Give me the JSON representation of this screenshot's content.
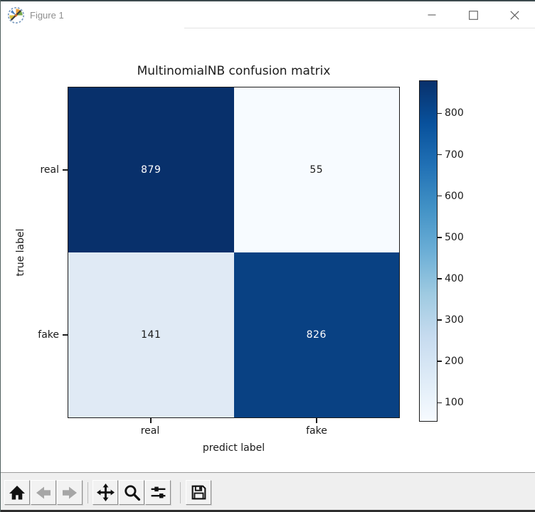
{
  "window": {
    "title": "Figure 1",
    "controls": [
      {
        "name": "minimize"
      },
      {
        "name": "maximize"
      },
      {
        "name": "close"
      }
    ]
  },
  "chart_data": {
    "type": "heatmap",
    "title": "MultinomialNB confusion matrix",
    "xlabel": "predict label",
    "ylabel": "true label",
    "x_categories": [
      "real",
      "fake"
    ],
    "y_categories": [
      "real",
      "fake"
    ],
    "matrix": [
      [
        879,
        55
      ],
      [
        141,
        826
      ]
    ],
    "cell_colors": [
      [
        "#08306b",
        "#f7fbff"
      ],
      [
        "#e0eaf5",
        "#094183"
      ]
    ],
    "cell_text_colors": [
      [
        "#ffffff",
        "#1a1a1a"
      ],
      [
        "#1a1a1a",
        "#ffffff"
      ]
    ],
    "colormap": "Blues",
    "colorbar": {
      "vmin": 55,
      "vmax": 879,
      "ticks": [
        800,
        700,
        600,
        500,
        400,
        300,
        200,
        100
      ],
      "position": "right"
    },
    "grid": false,
    "legend": "none"
  },
  "toolbar": {
    "buttons": [
      {
        "label": "home",
        "icon": "home-icon",
        "enabled": true
      },
      {
        "label": "back",
        "icon": "back-arrow-icon",
        "enabled": false
      },
      {
        "label": "forward",
        "icon": "forward-arrow-icon",
        "enabled": false
      },
      {
        "label": "pan",
        "icon": "pan-arrows-icon",
        "enabled": true
      },
      {
        "label": "zoom",
        "icon": "magnifier-icon",
        "enabled": true
      },
      {
        "label": "configure-subplots",
        "icon": "sliders-icon",
        "enabled": true
      },
      {
        "label": "save",
        "icon": "floppy-disk-icon",
        "enabled": true
      }
    ]
  }
}
